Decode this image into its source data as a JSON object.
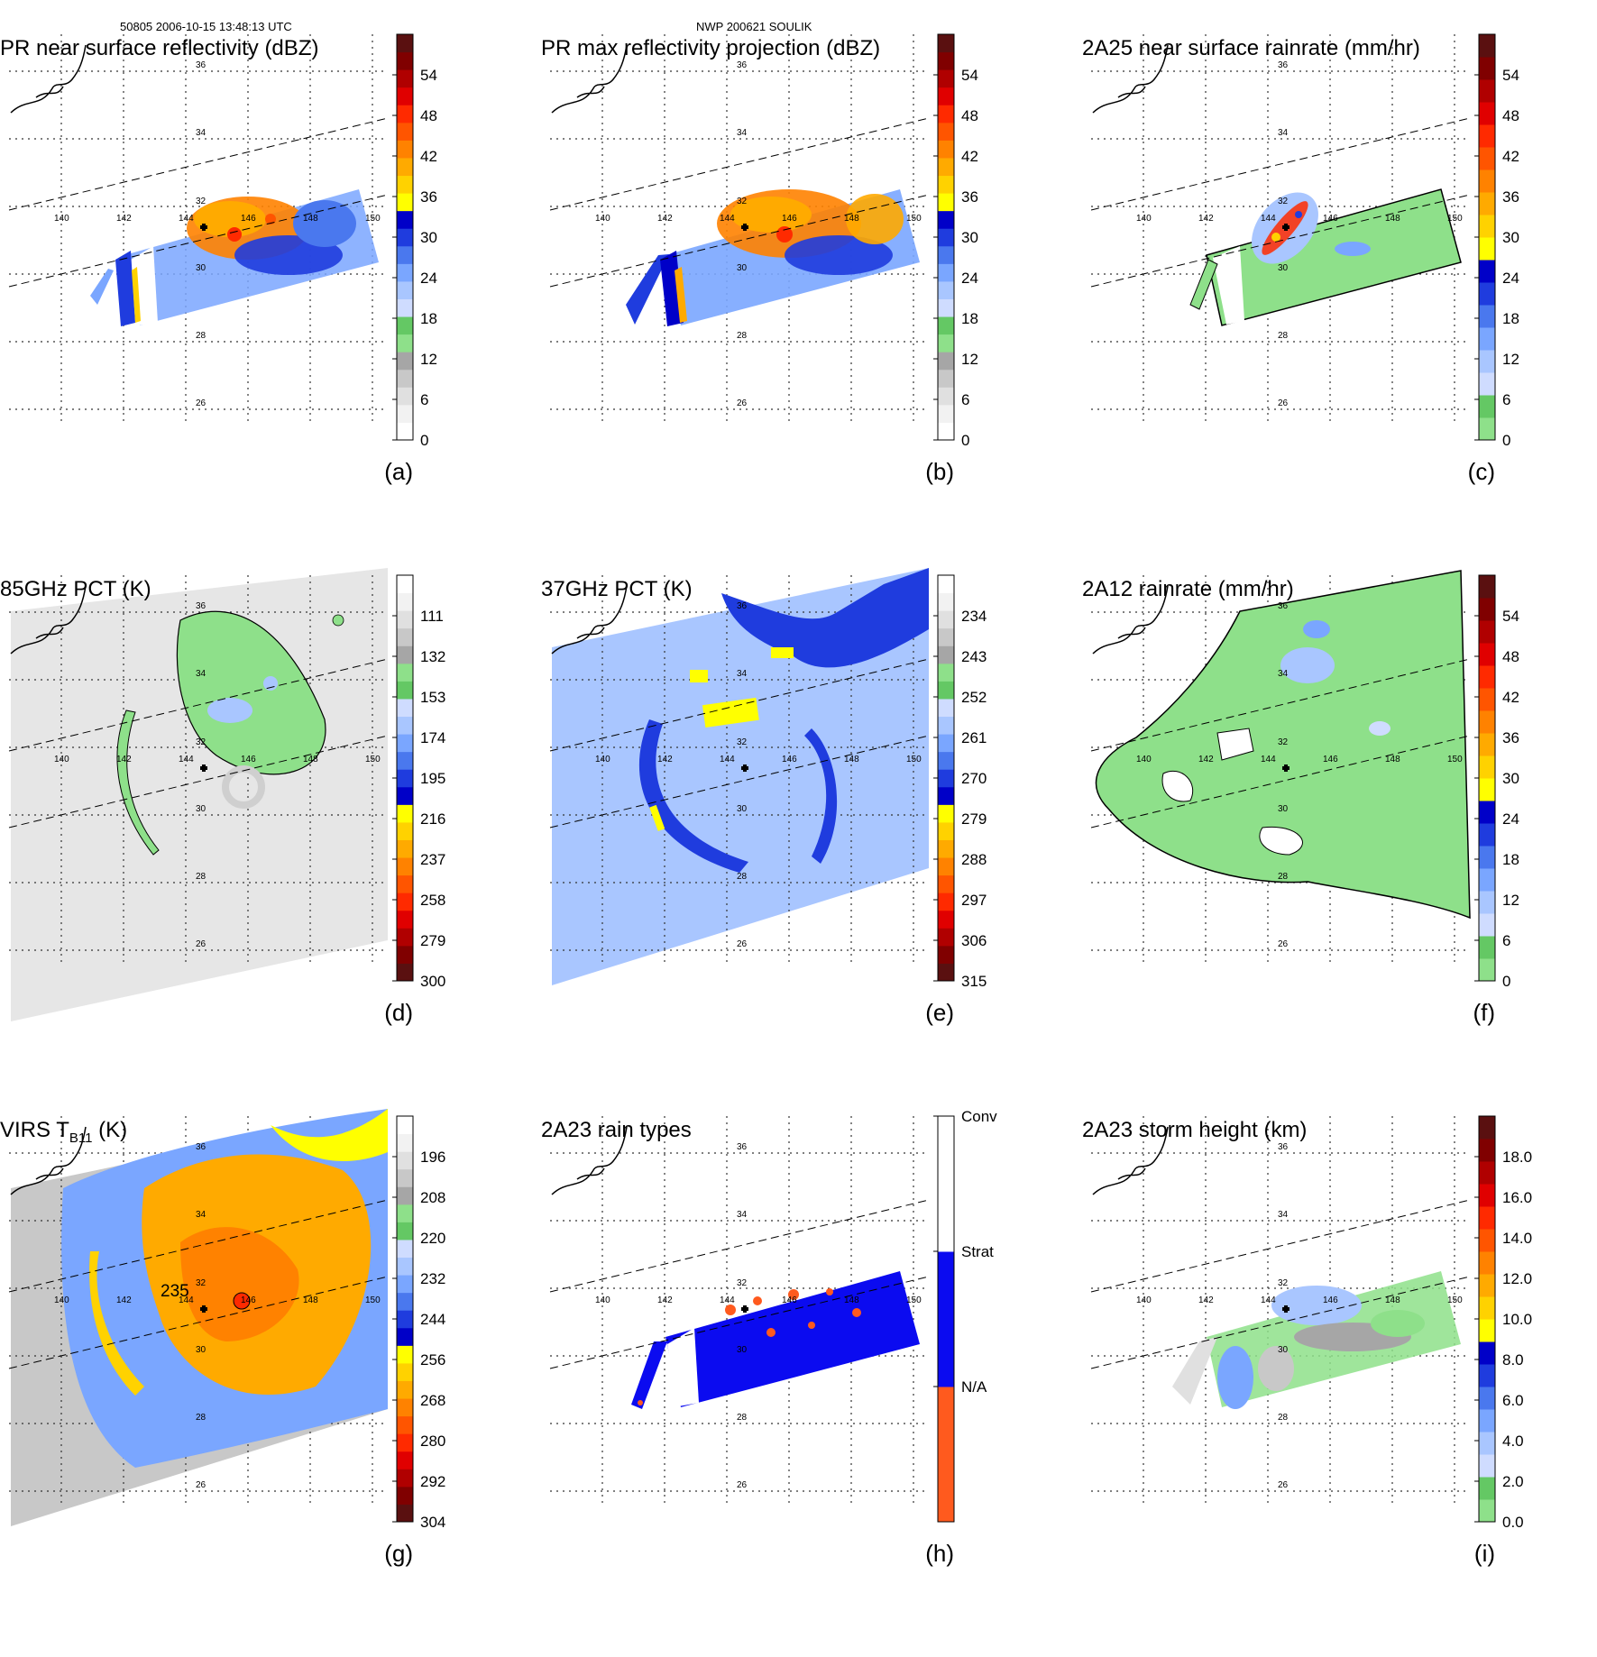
{
  "header": {
    "left": "50805 2006-10-15 13:48:13 UTC",
    "center": "NWP 200621 SOULIK"
  },
  "map": {
    "lon_labels": [
      "140",
      "142",
      "144",
      "146",
      "148",
      "150"
    ],
    "lat_labels": [
      "26",
      "28",
      "30",
      "32",
      "34",
      "36"
    ]
  },
  "palettes": {
    "refl": [
      "#ffffff",
      "#f2f2f2",
      "#e0e0e0",
      "#c8c8c8",
      "#a6a6a6",
      "#8ee08a",
      "#64c864",
      "#cfdcff",
      "#a9c6ff",
      "#7aa6ff",
      "#4a78ee",
      "#1f3cde",
      "#0000c8",
      "#ffff00",
      "#ffd200",
      "#ffaa00",
      "#ff8200",
      "#ff5500",
      "#ff2a00",
      "#e00000",
      "#b00000",
      "#800000",
      "#5a1010"
    ],
    "rain": [
      "#8ee08a",
      "#64c864",
      "#cfdcff",
      "#a9c6ff",
      "#7aa6ff",
      "#4a78ee",
      "#1f3cde",
      "#0000c8",
      "#ffff00",
      "#ffd200",
      "#ffaa00",
      "#ff8200",
      "#ff5500",
      "#ff2a00",
      "#e00000",
      "#b00000",
      "#800000",
      "#5a1010"
    ],
    "temp": [
      "#5a1010",
      "#800000",
      "#b00000",
      "#e00000",
      "#ff2a00",
      "#ff5500",
      "#ff8200",
      "#ffaa00",
      "#ffd200",
      "#ffff00",
      "#0000c8",
      "#1f3cde",
      "#4a78ee",
      "#7aa6ff",
      "#a9c6ff",
      "#cfdcff",
      "#64c864",
      "#8ee08a",
      "#a6a6a6",
      "#c8c8c8",
      "#e0e0e0",
      "#f2f2f2",
      "#ffffff"
    ],
    "types": [
      "#ff5a1e",
      "#0b0bf0",
      "#ffffff"
    ]
  },
  "panels": [
    {
      "id": "a",
      "title": "PR near surface reflectivity (dBZ)",
      "label": "(a)",
      "scale": "refl",
      "ticks": [
        "0",
        "6",
        "12",
        "18",
        "24",
        "30",
        "36",
        "42",
        "48",
        "54"
      ]
    },
    {
      "id": "b",
      "title": "PR max reflectivity projection (dBZ)",
      "label": "(b)",
      "scale": "refl",
      "ticks": [
        "0",
        "6",
        "12",
        "18",
        "24",
        "30",
        "36",
        "42",
        "48",
        "54"
      ]
    },
    {
      "id": "c",
      "title": "2A25 near surface rainrate (mm/hr)",
      "label": "(c)",
      "scale": "rain",
      "ticks": [
        "0",
        "6",
        "12",
        "18",
        "24",
        "30",
        "36",
        "42",
        "48",
        "54"
      ]
    },
    {
      "id": "d",
      "title": "85GHz PCT (K)",
      "label": "(d)",
      "scale": "temp",
      "ticks": [
        "300",
        "279",
        "258",
        "237",
        "216",
        "195",
        "174",
        "153",
        "132",
        "111"
      ]
    },
    {
      "id": "e",
      "title": "37GHz PCT (K)",
      "label": "(e)",
      "scale": "temp",
      "ticks": [
        "315",
        "306",
        "297",
        "288",
        "279",
        "270",
        "261",
        "252",
        "243",
        "234"
      ]
    },
    {
      "id": "f",
      "title": "2A12 rainrate (mm/hr)",
      "label": "(f)",
      "scale": "rain",
      "ticks": [
        "0",
        "6",
        "12",
        "18",
        "24",
        "30",
        "36",
        "42",
        "48",
        "54"
      ]
    },
    {
      "id": "g",
      "title": "VIRS T",
      "title_sub": "B11",
      "title_tail": " (K)",
      "label": "(g)",
      "scale": "temp",
      "ticks": [
        "304",
        "292",
        "280",
        "268",
        "256",
        "244",
        "232",
        "220",
        "208",
        "196"
      ],
      "annotation": "235"
    },
    {
      "id": "h",
      "title": "2A23 rain types",
      "label": "(h)",
      "scale": "types",
      "ticks": [
        "N/A",
        "Strat",
        "Conv"
      ]
    },
    {
      "id": "i",
      "title": "2A23 storm height (km)",
      "label": "(i)",
      "scale": "rain",
      "ticks": [
        "0.0",
        "2.0",
        "4.0",
        "6.0",
        "8.0",
        "10.0",
        "12.0",
        "14.0",
        "16.0",
        "18.0"
      ]
    }
  ]
}
